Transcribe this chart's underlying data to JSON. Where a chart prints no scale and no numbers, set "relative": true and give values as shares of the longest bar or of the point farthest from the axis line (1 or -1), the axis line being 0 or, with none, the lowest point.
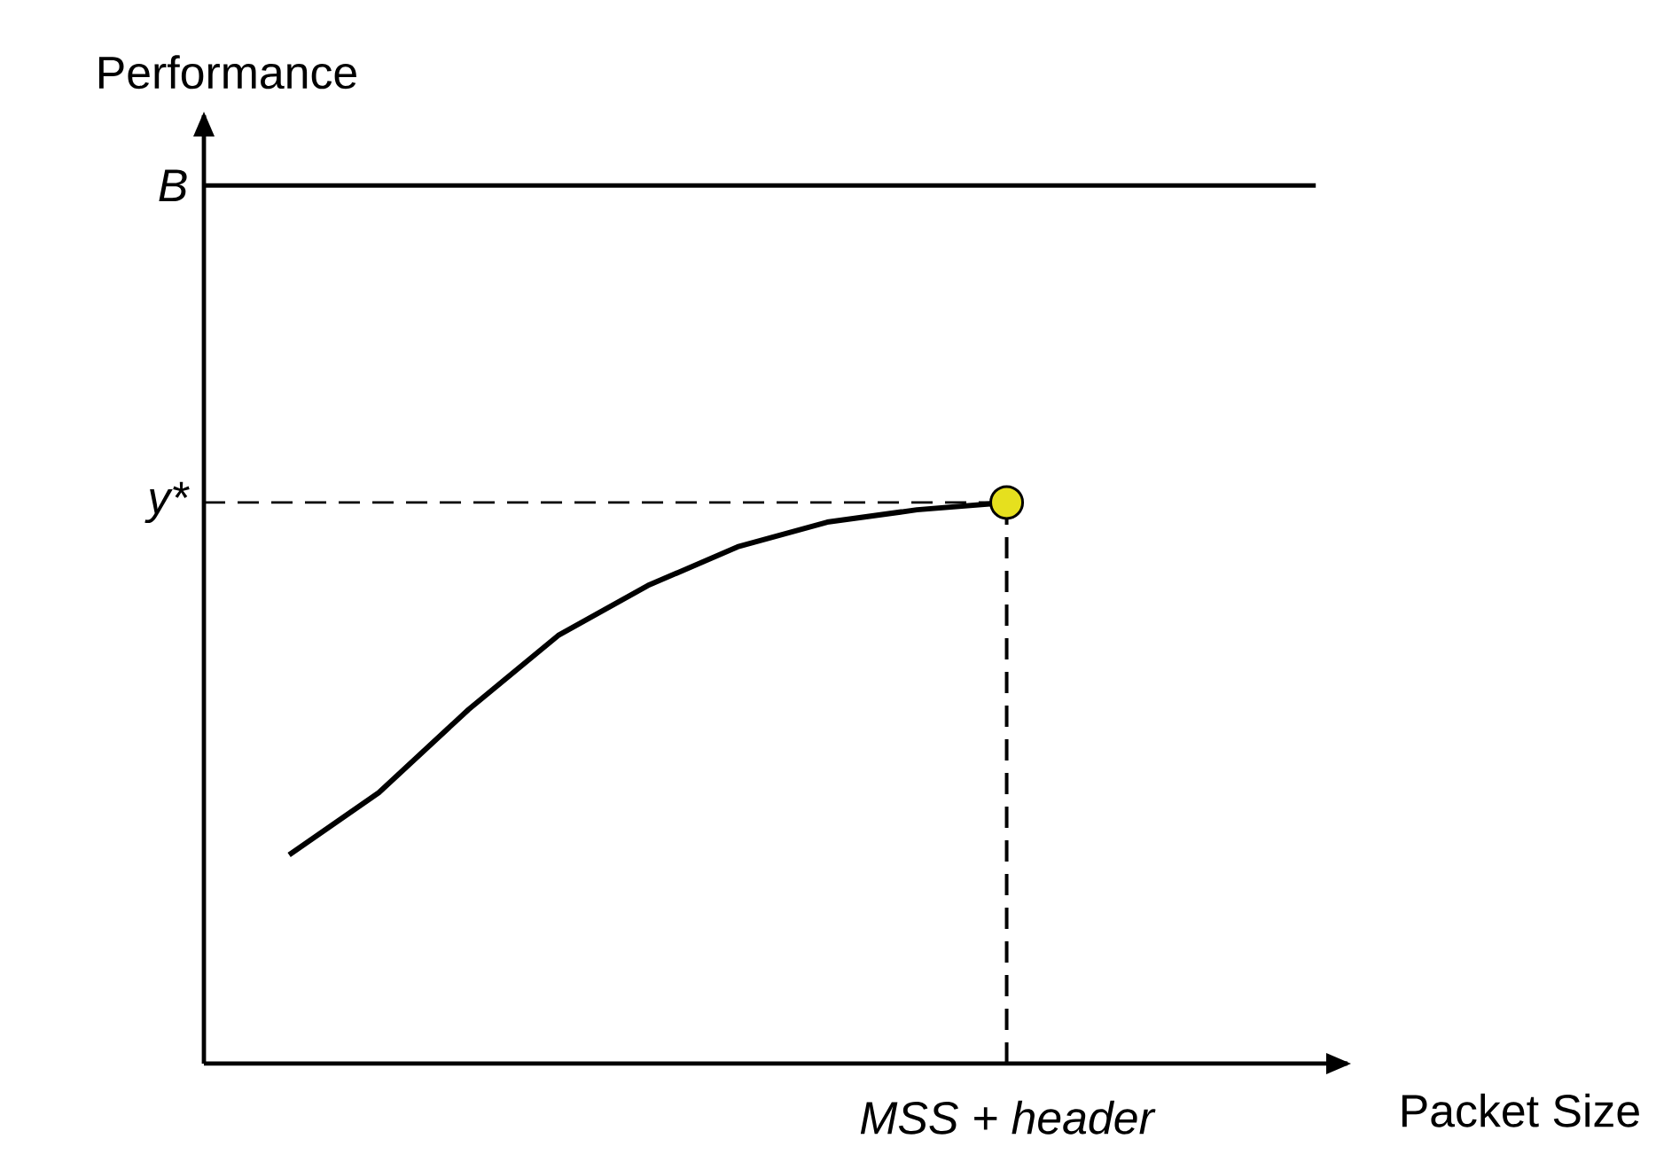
{
  "chart_data": {
    "type": "line",
    "relative": true,
    "annotations": [
      "Performance",
      "Packet Size",
      "MSS + header"
    ],
    "categories": [
      null,
      null,
      null,
      null,
      null,
      null,
      null,
      null,
      null
    ],
    "series": [
      {
        "color": "#000000",
        "values": [
          0.372,
          0.483,
          0.631,
          0.763,
          0.852,
          0.921,
          0.965,
          0.987,
          1.0
        ]
      }
    ],
    "ref_lines": [
      {
        "axis": "y",
        "value": 1.565,
        "label": "B",
        "line_style": "solid"
      },
      {
        "axis": "y",
        "value": 1.0,
        "label": "y*",
        "line_style": "dashed"
      }
    ]
  }
}
